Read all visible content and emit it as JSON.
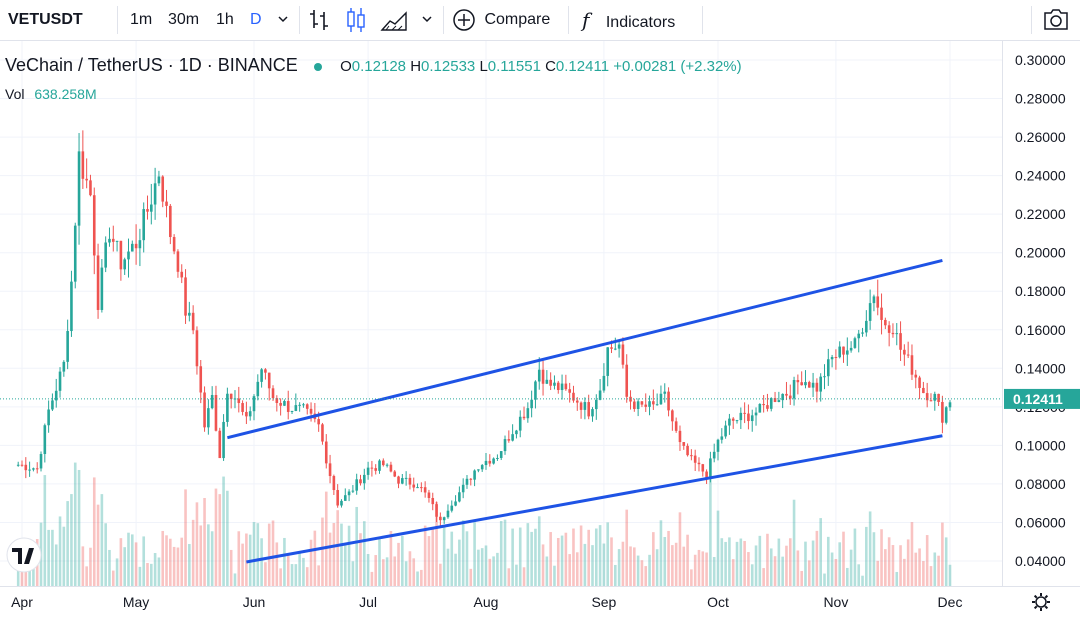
{
  "toolbar": {
    "symbol": "VETUSDT",
    "intervals": [
      "1m",
      "30m",
      "1h",
      "D"
    ],
    "compare_label": "Compare",
    "indicators_label": "Indicators",
    "fx_glyph": "f"
  },
  "legend": {
    "title": "VeChain / TetherUS · 1D · BINANCE",
    "open_label": "O",
    "open": "0.12128",
    "high_label": "H",
    "high": "0.12533",
    "low_label": "L",
    "low": "0.11551",
    "close_label": "C",
    "close": "0.12411",
    "change": "+0.00281 (+2.32%)",
    "vol_label": "Vol",
    "vol": "638.258M"
  },
  "colors": {
    "up": "#26a69a",
    "down": "#ef5350",
    "trendline": "#1e53e5",
    "accent": "#2962ff"
  },
  "chart_data": {
    "type": "candlestick",
    "yaxis_ticks": [
      "0.30000",
      "0.28000",
      "0.26000",
      "0.24000",
      "0.22000",
      "0.20000",
      "0.18000",
      "0.16000",
      "0.14000",
      "0.12000",
      "0.10000",
      "0.08000",
      "0.06000",
      "0.04000"
    ],
    "ylim": [
      0.03,
      0.3
    ],
    "xaxis_ticks": [
      "Apr",
      "May",
      "Jun",
      "Jul",
      "Aug",
      "Sep",
      "Oct",
      "Nov",
      "Dec"
    ],
    "last_price": "0.12411",
    "close_path": [
      [
        "2021-03-31",
        0.09
      ],
      [
        "2021-04-05",
        0.088
      ],
      [
        "2021-04-08",
        0.118
      ],
      [
        "2021-04-12",
        0.142
      ],
      [
        "2021-04-14",
        0.185
      ],
      [
        "2021-04-16",
        0.25
      ],
      [
        "2021-04-19",
        0.23
      ],
      [
        "2021-04-21",
        0.175
      ],
      [
        "2021-04-24",
        0.212
      ],
      [
        "2021-04-27",
        0.195
      ],
      [
        "2021-05-01",
        0.205
      ],
      [
        "2021-05-04",
        0.222
      ],
      [
        "2021-05-07",
        0.242
      ],
      [
        "2021-05-10",
        0.21
      ],
      [
        "2021-05-12",
        0.195
      ],
      [
        "2021-05-14",
        0.17
      ],
      [
        "2021-05-16",
        0.16
      ],
      [
        "2021-05-19",
        0.11
      ],
      [
        "2021-05-21",
        0.125
      ],
      [
        "2021-05-23",
        0.095
      ],
      [
        "2021-05-25",
        0.13
      ],
      [
        "2021-05-27",
        0.125
      ],
      [
        "2021-05-30",
        0.112
      ],
      [
        "2021-06-03",
        0.14
      ],
      [
        "2021-06-06",
        0.125
      ],
      [
        "2021-06-10",
        0.12
      ],
      [
        "2021-06-14",
        0.118
      ],
      [
        "2021-06-18",
        0.11
      ],
      [
        "2021-06-21",
        0.085
      ],
      [
        "2021-06-23",
        0.07
      ],
      [
        "2021-06-26",
        0.075
      ],
      [
        "2021-07-01",
        0.088
      ],
      [
        "2021-07-05",
        0.09
      ],
      [
        "2021-07-09",
        0.082
      ],
      [
        "2021-07-14",
        0.08
      ],
      [
        "2021-07-17",
        0.072
      ],
      [
        "2021-07-20",
        0.06
      ],
      [
        "2021-07-22",
        0.068
      ],
      [
        "2021-07-26",
        0.078
      ],
      [
        "2021-07-30",
        0.09
      ],
      [
        "2021-08-04",
        0.095
      ],
      [
        "2021-08-08",
        0.108
      ],
      [
        "2021-08-12",
        0.12
      ],
      [
        "2021-08-15",
        0.14
      ],
      [
        "2021-08-17",
        0.132
      ],
      [
        "2021-08-20",
        0.13
      ],
      [
        "2021-08-24",
        0.125
      ],
      [
        "2021-08-28",
        0.118
      ],
      [
        "2021-08-31",
        0.13
      ],
      [
        "2021-09-02",
        0.15
      ],
      [
        "2021-09-05",
        0.152
      ],
      [
        "2021-09-07",
        0.125
      ],
      [
        "2021-09-10",
        0.12
      ],
      [
        "2021-09-14",
        0.12
      ],
      [
        "2021-09-17",
        0.125
      ],
      [
        "2021-09-21",
        0.1
      ],
      [
        "2021-09-24",
        0.092
      ],
      [
        "2021-09-28",
        0.085
      ],
      [
        "2021-10-01",
        0.102
      ],
      [
        "2021-10-04",
        0.112
      ],
      [
        "2021-10-08",
        0.115
      ],
      [
        "2021-10-12",
        0.118
      ],
      [
        "2021-10-16",
        0.125
      ],
      [
        "2021-10-20",
        0.128
      ],
      [
        "2021-10-23",
        0.135
      ],
      [
        "2021-10-27",
        0.13
      ],
      [
        "2021-10-31",
        0.145
      ],
      [
        "2021-11-03",
        0.15
      ],
      [
        "2021-11-06",
        0.152
      ],
      [
        "2021-11-09",
        0.168
      ],
      [
        "2021-11-11",
        0.18
      ],
      [
        "2021-11-13",
        0.165
      ],
      [
        "2021-11-16",
        0.162
      ],
      [
        "2021-11-18",
        0.15
      ],
      [
        "2021-11-21",
        0.14
      ],
      [
        "2021-11-24",
        0.128
      ],
      [
        "2021-11-27",
        0.125
      ],
      [
        "2021-11-29",
        0.115
      ],
      [
        "2021-12-01",
        0.124
      ]
    ],
    "trendlines": [
      {
        "from": [
          "2021-05-25",
          0.104
        ],
        "to": [
          "2021-11-29",
          0.196
        ]
      },
      {
        "from": [
          "2021-05-30",
          0.0395
        ],
        "to": [
          "2021-11-29",
          0.105
        ]
      }
    ]
  }
}
